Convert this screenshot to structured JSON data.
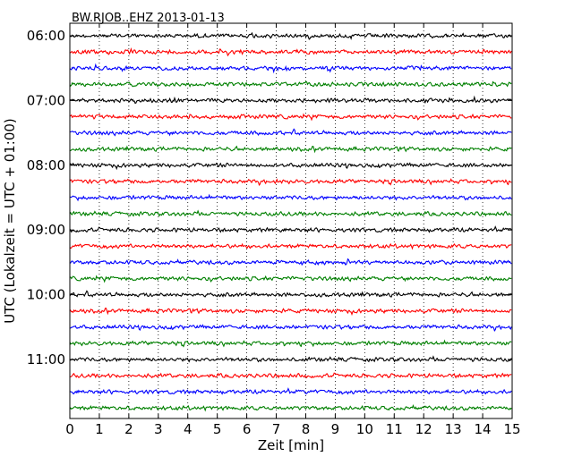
{
  "chart_data": {
    "type": "line",
    "title": "BW.RJOB..EHZ 2013-01-13",
    "xlabel": "Zeit  [min]",
    "ylabel": "UTC (Lokalzeit = UTC + 01:00)",
    "xlim": [
      0,
      15
    ],
    "x_ticks": [
      "0",
      "1",
      "2",
      "3",
      "4",
      "5",
      "6",
      "7",
      "8",
      "9",
      "10",
      "11",
      "12",
      "13",
      "14",
      "15"
    ],
    "y_tick_labels": [
      "06:00",
      "07:00",
      "08:00",
      "09:00",
      "10:00",
      "11:00"
    ],
    "grid": "vertical-dotted",
    "trace_start_times": [
      "06:00",
      "06:15",
      "06:30",
      "06:45",
      "07:00",
      "07:15",
      "07:30",
      "07:45",
      "08:00",
      "08:15",
      "08:30",
      "08:45",
      "09:00",
      "09:15",
      "09:30",
      "09:45",
      "10:00",
      "10:15",
      "10:30",
      "10:45",
      "11:00",
      "11:15",
      "11:30",
      "11:45"
    ],
    "color_cycle": [
      "#000000",
      "#ff0000",
      "#0000ff",
      "#008000"
    ]
  }
}
